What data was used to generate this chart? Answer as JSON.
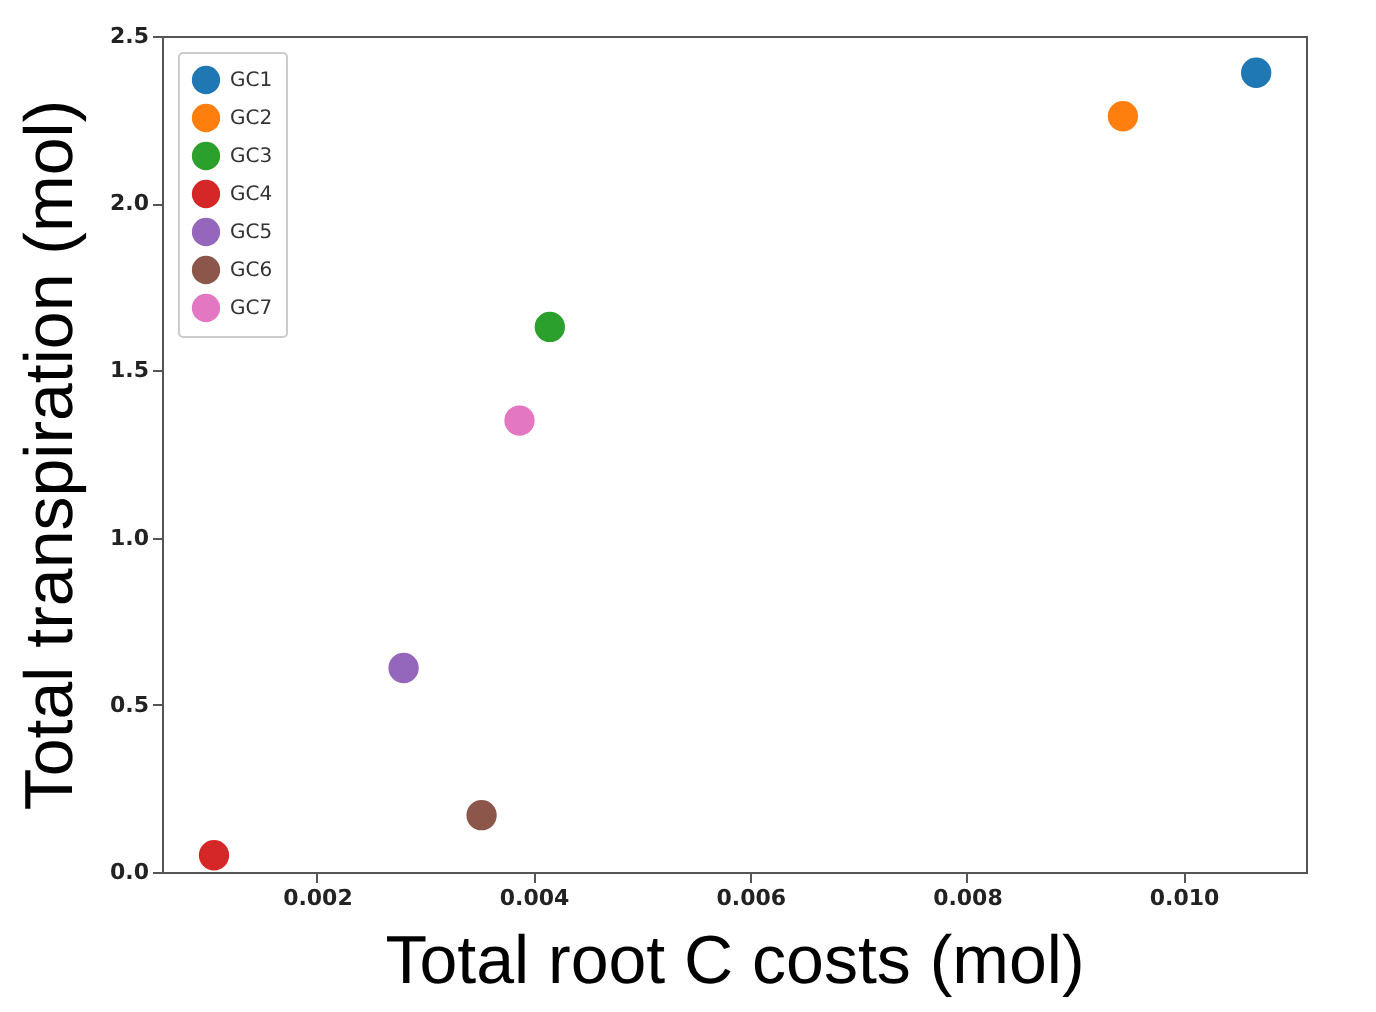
{
  "chart_data": {
    "type": "scatter",
    "xlabel": "Total root C costs (mol)",
    "ylabel": "Total transpiration (mol)",
    "xlim": [
      0.00057,
      0.01113
    ],
    "xticks": [
      {
        "value": 0.002,
        "label": "0.002"
      },
      {
        "value": 0.004,
        "label": "0.004"
      },
      {
        "value": 0.006,
        "label": "0.006"
      },
      {
        "value": 0.008,
        "label": "0.008"
      },
      {
        "value": 0.01,
        "label": "0.010"
      }
    ],
    "ylim": [
      0,
      2.5
    ],
    "yticks": [
      {
        "value": 0,
        "label": "0.0"
      },
      {
        "value": 0.5,
        "label": "0.5"
      },
      {
        "value": 1,
        "label": "1.0"
      },
      {
        "value": 1.5,
        "label": "1.5"
      },
      {
        "value": 2,
        "label": "2.0"
      },
      {
        "value": 2.5,
        "label": "2.5"
      }
    ],
    "legend": "top left",
    "grid": false,
    "marker": "circle",
    "series": [
      {
        "name": "GC1",
        "color": "#1f77b4",
        "x": [
          0.01067
        ],
        "values": [
          2.39
        ]
      },
      {
        "name": "GC2",
        "color": "#ff7f0e",
        "x": [
          0.00944
        ],
        "values": [
          2.26
        ]
      },
      {
        "name": "GC3",
        "color": "#2ca02c",
        "x": [
          0.00415
        ],
        "values": [
          1.63
        ]
      },
      {
        "name": "GC4",
        "color": "#d62728",
        "x": [
          0.00105
        ],
        "values": [
          0.05
        ]
      },
      {
        "name": "GC5",
        "color": "#9467bd",
        "x": [
          0.0028
        ],
        "values": [
          0.61
        ]
      },
      {
        "name": "GC6",
        "color": "#8c564b",
        "x": [
          0.00352
        ],
        "values": [
          0.17
        ]
      },
      {
        "name": "GC7",
        "color": "#e377c2",
        "x": [
          0.00387
        ],
        "values": [
          1.35
        ]
      }
    ]
  }
}
